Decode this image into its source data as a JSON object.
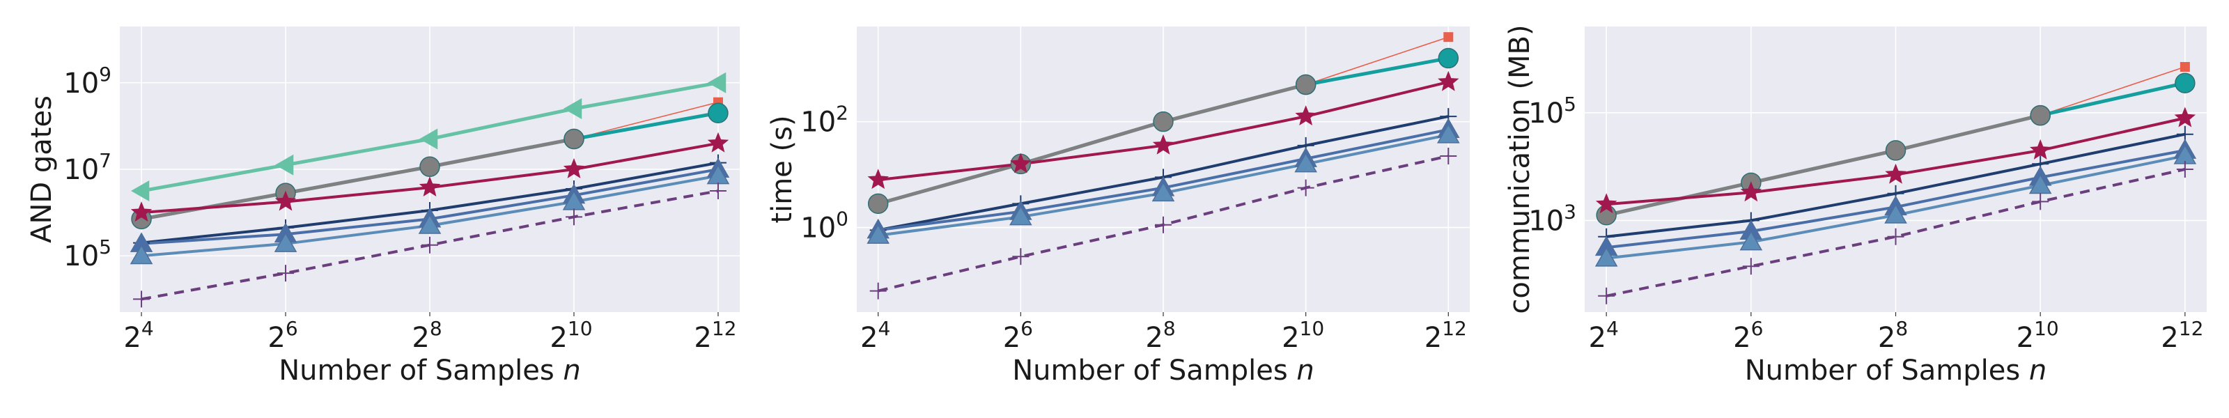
{
  "chart_data": [
    {
      "type": "line",
      "ylabel": "AND gates",
      "xlabel": "Number of Samples",
      "xlabel_var": "n",
      "scale": "log",
      "x": [
        4,
        6,
        8,
        10,
        12
      ],
      "x_ticks": [
        {
          "base": "2",
          "exp": "4"
        },
        {
          "base": "2",
          "exp": "6"
        },
        {
          "base": "2",
          "exp": "8"
        },
        {
          "base": "2",
          "exp": "10"
        },
        {
          "base": "2",
          "exp": "12"
        }
      ],
      "y_ticks": [
        {
          "base": "10",
          "exp": "5",
          "v": 5
        },
        {
          "base": "10",
          "exp": "7",
          "v": 7
        },
        {
          "base": "10",
          "exp": "9",
          "v": 9
        }
      ],
      "ylim_log10": [
        3.7,
        10.3
      ],
      "grid": true,
      "series": [
        {
          "color": "#66c2a5",
          "marker": "triangle-left",
          "width": 5,
          "values": [
            6.5,
            7.1,
            7.7,
            8.4,
            9.0
          ]
        },
        {
          "color": "#e8604c",
          "marker": "square",
          "width": 1.6,
          "points": [
            4,
            12
          ],
          "values": [
            5.85,
            6.45,
            7.06,
            7.7,
            8.55
          ]
        },
        {
          "color": "#159e9e",
          "marker": "circle",
          "width": 5,
          "points": [
            10,
            12
          ],
          "values": [
            5.85,
            6.45,
            7.06,
            7.7,
            8.3
          ]
        },
        {
          "color": "#808080",
          "marker": "circle",
          "width": 5,
          "points": [
            4,
            6,
            8,
            10
          ],
          "values": [
            5.85,
            6.45,
            7.06,
            7.7,
            null
          ]
        },
        {
          "color": "#a0184e",
          "marker": "star",
          "width": 4,
          "values": [
            6.0,
            6.25,
            6.58,
            7.0,
            7.6
          ]
        },
        {
          "color": "#1f3d6e",
          "marker": "plus",
          "width": 4,
          "values": [
            5.3,
            5.65,
            6.05,
            6.55,
            7.15
          ]
        },
        {
          "color": "#4a6fa8",
          "marker": "triangle-up",
          "width": 4,
          "values": [
            5.28,
            5.5,
            5.85,
            6.4,
            7.0
          ]
        },
        {
          "color": "#5b8db8",
          "marker": "triangle-up",
          "width": 4,
          "values": [
            5.0,
            5.28,
            5.7,
            6.25,
            6.85
          ]
        },
        {
          "color": "#6b3e7e",
          "marker": "plus",
          "width": 4,
          "dash": "14,10",
          "values": [
            4.0,
            4.6,
            5.25,
            5.9,
            6.5
          ]
        }
      ]
    },
    {
      "type": "line",
      "ylabel": "time (s)",
      "xlabel": "Number of Samples",
      "xlabel_var": "n",
      "scale": "log",
      "x": [
        4,
        6,
        8,
        10,
        12
      ],
      "x_ticks": [
        {
          "base": "2",
          "exp": "4"
        },
        {
          "base": "2",
          "exp": "6"
        },
        {
          "base": "2",
          "exp": "8"
        },
        {
          "base": "2",
          "exp": "10"
        },
        {
          "base": "2",
          "exp": "12"
        }
      ],
      "y_ticks": [
        {
          "base": "10",
          "exp": "0",
          "v": 0
        },
        {
          "base": "10",
          "exp": "2",
          "v": 2
        }
      ],
      "ylim_log10": [
        -1.6,
        3.8
      ],
      "grid": true,
      "series": [
        {
          "color": "#e8604c",
          "marker": "square",
          "width": 1.6,
          "points": [
            4,
            12
          ],
          "values": [
            0.45,
            1.2,
            2.0,
            2.7,
            3.6
          ]
        },
        {
          "color": "#159e9e",
          "marker": "circle",
          "width": 5,
          "points": [
            10,
            12
          ],
          "values": [
            0.45,
            1.2,
            2.0,
            2.7,
            3.2
          ]
        },
        {
          "color": "#808080",
          "marker": "circle",
          "width": 5,
          "points": [
            4,
            6,
            8,
            10
          ],
          "values": [
            0.45,
            1.2,
            2.0,
            2.7,
            null
          ]
        },
        {
          "color": "#a0184e",
          "marker": "star",
          "width": 4,
          "values": [
            0.9,
            1.2,
            1.55,
            2.1,
            2.75
          ]
        },
        {
          "color": "#1f3d6e",
          "marker": "plus",
          "width": 4,
          "values": [
            -0.05,
            0.45,
            0.95,
            1.55,
            2.1
          ]
        },
        {
          "color": "#4a6fa8",
          "marker": "triangle-up",
          "width": 4,
          "values": [
            -0.05,
            0.3,
            0.75,
            1.3,
            1.85
          ]
        },
        {
          "color": "#5b8db8",
          "marker": "triangle-up",
          "width": 4,
          "values": [
            -0.15,
            0.2,
            0.65,
            1.2,
            1.75
          ]
        },
        {
          "color": "#6b3e7e",
          "marker": "plus",
          "width": 4,
          "dash": "14,10",
          "values": [
            -1.2,
            -0.55,
            0.05,
            0.75,
            1.35
          ]
        }
      ]
    },
    {
      "type": "line",
      "ylabel": "communication (MB)",
      "xlabel": "Number of Samples",
      "xlabel_var": "n",
      "scale": "log",
      "x": [
        4,
        6,
        8,
        10,
        12
      ],
      "x_ticks": [
        {
          "base": "2",
          "exp": "4"
        },
        {
          "base": "2",
          "exp": "6"
        },
        {
          "base": "2",
          "exp": "8"
        },
        {
          "base": "2",
          "exp": "10"
        },
        {
          "base": "2",
          "exp": "12"
        }
      ],
      "y_ticks": [
        {
          "base": "10",
          "exp": "3",
          "v": 3
        },
        {
          "base": "10",
          "exp": "5",
          "v": 5
        }
      ],
      "ylim_log10": [
        1.3,
        6.6
      ],
      "grid": true,
      "series": [
        {
          "color": "#e8604c",
          "marker": "square",
          "width": 1.6,
          "points": [
            4,
            12
          ],
          "values": [
            3.1,
            3.7,
            4.3,
            4.95,
            5.85
          ]
        },
        {
          "color": "#159e9e",
          "marker": "circle",
          "width": 5,
          "points": [
            10,
            12
          ],
          "values": [
            3.1,
            3.7,
            4.3,
            4.95,
            5.55
          ]
        },
        {
          "color": "#808080",
          "marker": "circle",
          "width": 5,
          "points": [
            4,
            6,
            8,
            10
          ],
          "values": [
            3.1,
            3.7,
            4.3,
            4.95,
            null
          ]
        },
        {
          "color": "#a0184e",
          "marker": "star",
          "width": 4,
          "values": [
            3.3,
            3.52,
            3.85,
            4.3,
            4.9
          ]
        },
        {
          "color": "#1f3d6e",
          "marker": "plus",
          "width": 4,
          "values": [
            2.7,
            3.0,
            3.5,
            4.05,
            4.6
          ]
        },
        {
          "color": "#4a6fa8",
          "marker": "triangle-up",
          "width": 4,
          "values": [
            2.5,
            2.8,
            3.25,
            3.8,
            4.3
          ]
        },
        {
          "color": "#5b8db8",
          "marker": "triangle-up",
          "width": 4,
          "values": [
            2.3,
            2.6,
            3.1,
            3.65,
            4.2
          ]
        },
        {
          "color": "#6b3e7e",
          "marker": "plus",
          "width": 4,
          "dash": "14,10",
          "values": [
            1.6,
            2.15,
            2.7,
            3.35,
            3.95
          ]
        }
      ]
    }
  ]
}
